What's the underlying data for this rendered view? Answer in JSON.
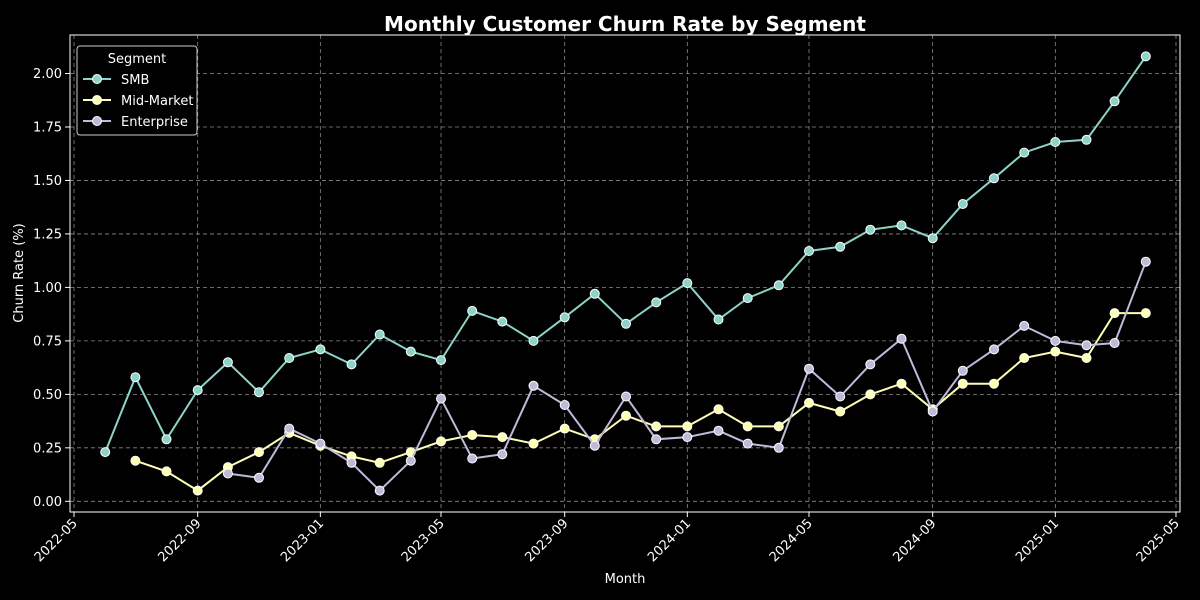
{
  "chart_data": {
    "type": "line",
    "title": "Monthly Customer Churn Rate by Segment",
    "xlabel": "Month",
    "ylabel": "Churn Rate (%)",
    "x": [
      "2022-06",
      "2022-07",
      "2022-08",
      "2022-09",
      "2022-10",
      "2022-11",
      "2022-12",
      "2023-01",
      "2023-02",
      "2023-03",
      "2023-04",
      "2023-05",
      "2023-06",
      "2023-07",
      "2023-08",
      "2023-09",
      "2023-10",
      "2023-11",
      "2023-12",
      "2024-01",
      "2024-02",
      "2024-03",
      "2024-04",
      "2024-05",
      "2024-06",
      "2024-07",
      "2024-08",
      "2024-09",
      "2024-10",
      "2024-11",
      "2024-12",
      "2025-01",
      "2025-02",
      "2025-03",
      "2025-04"
    ],
    "xlim": [
      "2022-04-27",
      "2025-05-05"
    ],
    "ylim": [
      -0.05,
      2.18
    ],
    "x_ticks": [
      "2022-05",
      "2022-09",
      "2023-01",
      "2023-05",
      "2023-09",
      "2024-01",
      "2024-05",
      "2024-09",
      "2025-01",
      "2025-05"
    ],
    "y_ticks": [
      "0.00",
      "0.25",
      "0.50",
      "0.75",
      "1.00",
      "1.25",
      "1.50",
      "1.75",
      "2.00"
    ],
    "grid": true,
    "legend": {
      "title": "Segment",
      "placement": "top-left"
    },
    "series": [
      {
        "name": "SMB",
        "color": "#8dd3c7",
        "values": [
          0.23,
          0.58,
          0.29,
          0.52,
          0.65,
          0.51,
          0.67,
          0.71,
          0.64,
          0.78,
          0.7,
          0.66,
          0.89,
          0.84,
          0.75,
          0.86,
          0.97,
          0.83,
          0.93,
          1.02,
          0.85,
          0.95,
          1.01,
          1.17,
          1.19,
          1.27,
          1.29,
          1.23,
          1.39,
          1.51,
          1.63,
          1.68,
          1.69,
          1.87,
          2.08
        ]
      },
      {
        "name": "Mid-Market",
        "color": "#ffffb3",
        "values": [
          null,
          0.19,
          0.14,
          0.05,
          0.16,
          0.23,
          0.32,
          0.26,
          0.21,
          0.18,
          0.23,
          0.28,
          0.31,
          0.3,
          0.27,
          0.34,
          0.29,
          0.4,
          0.35,
          0.35,
          0.43,
          0.35,
          0.35,
          0.46,
          0.42,
          0.5,
          0.55,
          0.43,
          0.55,
          0.55,
          0.67,
          0.7,
          0.67,
          0.88,
          0.88
        ]
      },
      {
        "name": "Enterprise",
        "color": "#bebada",
        "values": [
          null,
          null,
          null,
          null,
          0.13,
          0.11,
          0.34,
          0.27,
          0.18,
          0.05,
          0.19,
          0.48,
          0.2,
          0.22,
          0.54,
          0.45,
          0.26,
          0.49,
          0.29,
          0.3,
          0.33,
          0.27,
          0.25,
          0.62,
          0.49,
          0.64,
          0.76,
          0.42,
          0.61,
          0.71,
          0.82,
          0.75,
          0.73,
          0.74,
          1.12
        ]
      }
    ]
  }
}
